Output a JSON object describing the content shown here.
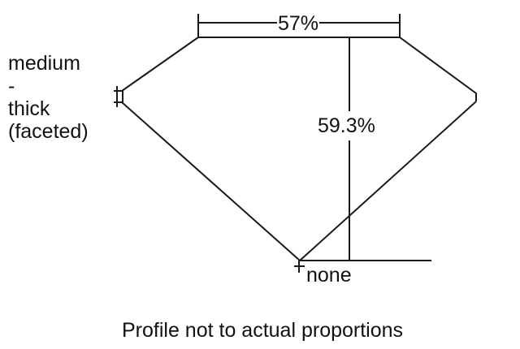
{
  "diagram": {
    "table_percent": "57%",
    "depth_percent": "59.3%",
    "girdle_label": [
      "medium",
      "-",
      "thick",
      "(faceted)"
    ],
    "culet_label": "none",
    "caption": "Profile not to actual proportions",
    "line_color": "#1a1a1a"
  }
}
